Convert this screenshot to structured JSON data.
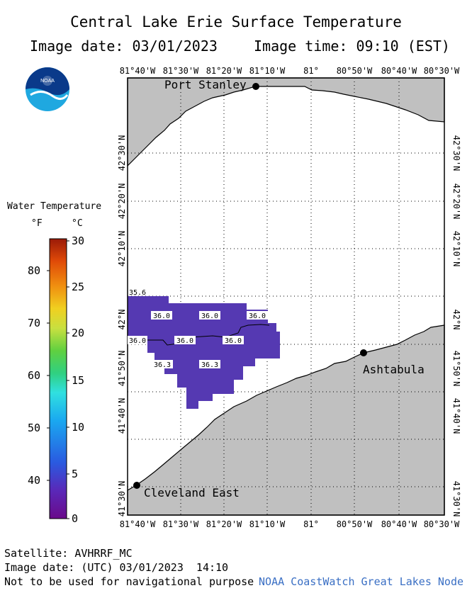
{
  "title": "Central Lake Erie Surface Temperature",
  "image_date": "Image date: 03/01/2023",
  "image_time": "Image time: 09:10 (EST)",
  "logo_text": "NOAA",
  "lon_labels": [
    "81°40'W",
    "81°30'W",
    "81°20'W",
    "81°10'W",
    "81°",
    "80°50'W",
    "80°40'W",
    "80°30'W"
  ],
  "lat_labels": [
    "42°30'N",
    "42°20'N",
    "42°10'N",
    "42°N",
    "41°50'N",
    "41°40'N",
    "41°30'N"
  ],
  "places": [
    {
      "name": "Port Stanley"
    },
    {
      "name": "Ashtabula"
    },
    {
      "name": "Cleveland East"
    }
  ],
  "temperature_labels": [
    "35.6",
    "36.0",
    "36.0",
    "36.0",
    "36.0",
    "36.0",
    "36.0",
    "36.3",
    "36.3"
  ],
  "legend": {
    "title": "Water Temperature",
    "unit_f": "°F",
    "unit_c": "°C",
    "f_ticks": [
      "80",
      "70",
      "60",
      "50",
      "40"
    ],
    "c_ticks": [
      "30",
      "25",
      "20",
      "15",
      "10",
      "5",
      "0"
    ]
  },
  "footer": {
    "satellite": "Satellite: AVHRRF_MC",
    "utc_date": "Image date: (UTC) 03/01/2023  14:10",
    "disclaimer": "Not to be used for navigational purpose",
    "credit": "NOAA CoastWatch Great Lakes Node"
  },
  "colors": {
    "land": "#c0c0c0",
    "water": "#ffffff",
    "sst": "#5539b2",
    "credit": "#3a6fc4"
  }
}
